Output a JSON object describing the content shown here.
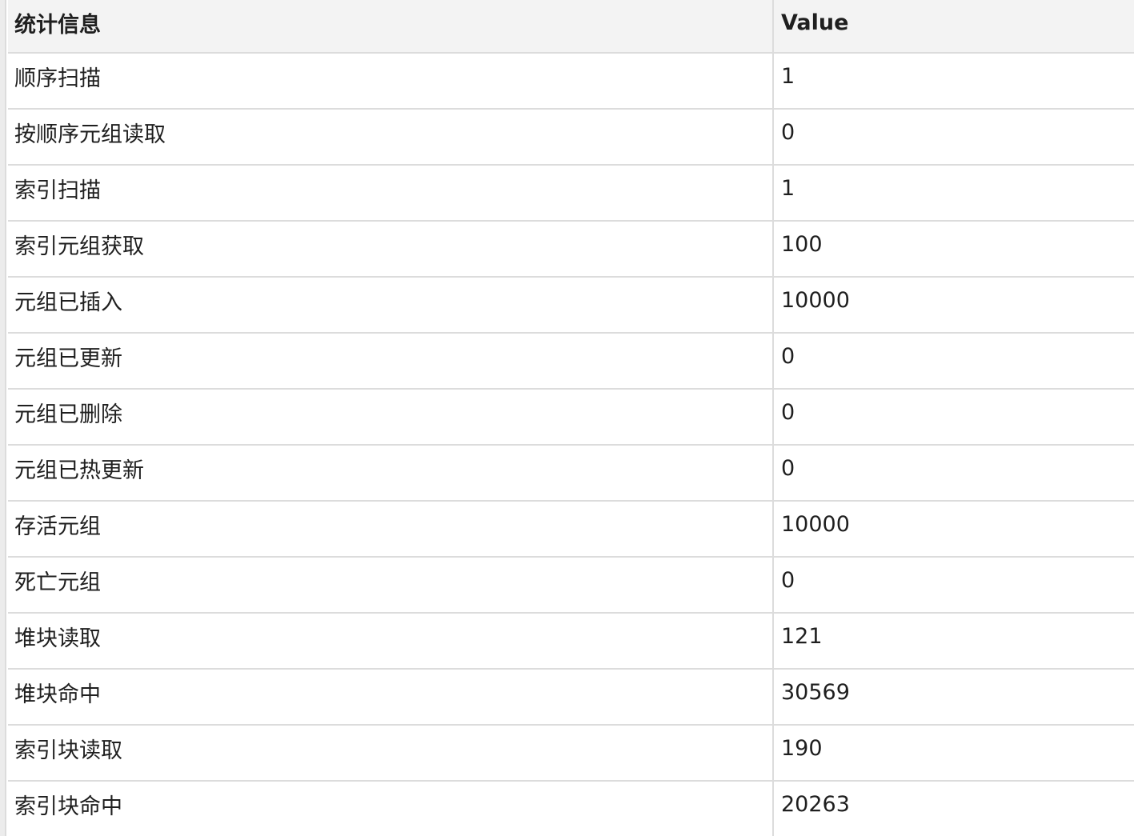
{
  "table": {
    "columns": {
      "name": "统计信息",
      "value": "Value"
    },
    "rows": [
      {
        "name": "顺序扫描",
        "value": "1"
      },
      {
        "name": "按顺序元组读取",
        "value": "0"
      },
      {
        "name": "索引扫描",
        "value": "1"
      },
      {
        "name": "索引元组获取",
        "value": "100"
      },
      {
        "name": "元组已插入",
        "value": "10000"
      },
      {
        "name": "元组已更新",
        "value": "0"
      },
      {
        "name": "元组已删除",
        "value": "0"
      },
      {
        "name": "元组已热更新",
        "value": "0"
      },
      {
        "name": "存活元组",
        "value": "10000"
      },
      {
        "name": "死亡元组",
        "value": "0"
      },
      {
        "name": "堆块读取",
        "value": "121"
      },
      {
        "name": "堆块命中",
        "value": "30569"
      },
      {
        "name": "索引块读取",
        "value": "190"
      },
      {
        "name": "索引块命中",
        "value": "20263"
      }
    ]
  }
}
